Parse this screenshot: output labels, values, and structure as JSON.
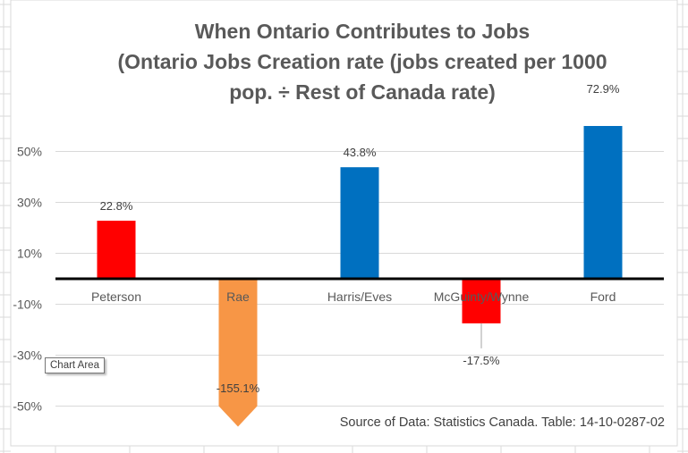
{
  "chart_data": {
    "type": "bar",
    "title": "When Ontario Contributes to Jobs (Ontario Jobs Creation rate (jobs created per 1000 pop. ÷ Rest of Canada rate)",
    "title_lines": [
      "When Ontario Contributes to Jobs",
      "(Ontario Jobs Creation rate (jobs created per 1000",
      "pop. ÷ Rest of Canada rate)"
    ],
    "categories": [
      "Peterson",
      "Rae",
      "Harris/Eves",
      "McGuinty/Wynne",
      "Ford"
    ],
    "values": [
      22.8,
      -155.1,
      43.8,
      -17.5,
      72.9
    ],
    "data_labels": [
      "22.8%",
      "-155.1%",
      "43.8%",
      "-17.5%",
      "72.9%"
    ],
    "colors": [
      "#FF0000",
      "#F79646",
      "#0070C0",
      "#FF0000",
      "#0070C0"
    ],
    "yticks": [
      "50%",
      "30%",
      "10%",
      "-10%",
      "-30%",
      "-50%"
    ],
    "ytick_values": [
      50,
      30,
      10,
      -10,
      -30,
      -50
    ],
    "ylim": [
      -60,
      60
    ],
    "grid": true,
    "xlabel": "",
    "ylabel": "",
    "annotation": "Source of Data:  Statistics Canada. Table: 14-10-0287-02"
  },
  "tooltip": "Chart Area"
}
